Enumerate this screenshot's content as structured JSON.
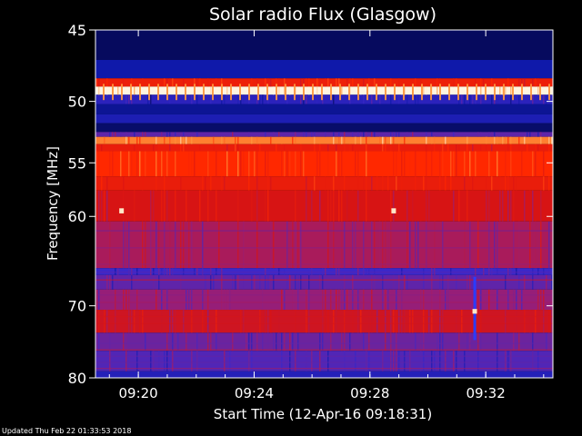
{
  "chart_data": {
    "type": "heatmap",
    "title": "Solar radio Flux (Glasgow)",
    "xlabel": "Start Time (12-Apr-16 09:18:31)",
    "ylabel": "Frequency [MHz]",
    "x_unit": "minutes after 09:18:31",
    "x_range": [
      0,
      15.8
    ],
    "y_range": [
      45,
      80
    ],
    "y_ticks": [
      45,
      50,
      55,
      60,
      70,
      80
    ],
    "x_ticks": [
      {
        "label": "09:20",
        "minutes": 1.48
      },
      {
        "label": "09:24",
        "minutes": 5.48
      },
      {
        "label": "09:28",
        "minutes": 9.48
      },
      {
        "label": "09:32",
        "minutes": 13.48
      }
    ],
    "bands": [
      {
        "from": 45.0,
        "to": 47.0,
        "intensity": 0.05
      },
      {
        "from": 47.0,
        "to": 48.3,
        "intensity": 0.12
      },
      {
        "from": 48.3,
        "to": 48.9,
        "intensity": 0.62
      },
      {
        "from": 48.9,
        "to": 49.5,
        "intensity": 1.0
      },
      {
        "from": 49.5,
        "to": 50.2,
        "intensity": 0.2
      },
      {
        "from": 50.2,
        "to": 51.0,
        "intensity": 0.1
      },
      {
        "from": 51.0,
        "to": 51.7,
        "intensity": 0.16
      },
      {
        "from": 51.7,
        "to": 52.4,
        "intensity": 0.06
      },
      {
        "from": 52.4,
        "to": 52.8,
        "intensity": 0.3
      },
      {
        "from": 52.8,
        "to": 53.4,
        "intensity": 0.82
      },
      {
        "from": 53.4,
        "to": 54.0,
        "intensity": 0.6
      },
      {
        "from": 54.0,
        "to": 56.2,
        "intensity": 0.7
      },
      {
        "from": 56.2,
        "to": 57.5,
        "intensity": 0.6
      },
      {
        "from": 57.5,
        "to": 60.5,
        "intensity": 0.52
      },
      {
        "from": 60.5,
        "to": 65.5,
        "intensity": 0.42
      },
      {
        "from": 65.5,
        "to": 66.3,
        "intensity": 0.25
      },
      {
        "from": 66.3,
        "to": 68.0,
        "intensity": 0.3
      },
      {
        "from": 68.0,
        "to": 70.5,
        "intensity": 0.38
      },
      {
        "from": 70.5,
        "to": 73.5,
        "intensity": 0.5
      },
      {
        "from": 73.5,
        "to": 76.0,
        "intensity": 0.32
      },
      {
        "from": 76.0,
        "to": 79.0,
        "intensity": 0.28
      },
      {
        "from": 79.0,
        "to": 80.0,
        "intensity": 0.18
      }
    ],
    "events": [
      {
        "minutes": 13.1,
        "from": 66.5,
        "to": 74.5,
        "kind": "blue-spike"
      },
      {
        "minutes": 13.1,
        "from": 70.4,
        "to": 71.0,
        "kind": "bright-spot"
      },
      {
        "minutes": 0.9,
        "from": 59.2,
        "to": 59.7,
        "kind": "bright-spot"
      },
      {
        "minutes": 10.3,
        "from": 59.2,
        "to": 59.7,
        "kind": "bright-spot"
      }
    ]
  },
  "footer": "Updated Thu Feb 22 01:33:53 2018"
}
